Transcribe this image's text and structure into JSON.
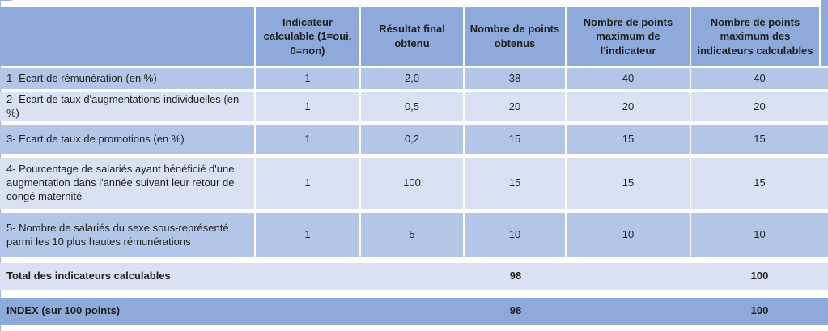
{
  "table": {
    "columns": [
      "",
      "Indicateur calculable (1=oui, 0=non)",
      "Résultat final obtenu",
      "Nombre de points obtenus",
      "Nombre de points maximum de l'indicateur",
      "Nombre de points maximum des indicateurs calculables"
    ],
    "rows": [
      {
        "label": "1- Ecart de rémunération (en %)",
        "calculable": "1",
        "resultat": "2,0",
        "points": "38",
        "max_indicateur": "40",
        "max_calculables": "40"
      },
      {
        "label": "2- Ecart de taux d'augmentations individuelles (en %)",
        "calculable": "1",
        "resultat": "0,5",
        "points": "20",
        "max_indicateur": "20",
        "max_calculables": "20"
      },
      {
        "label": "3- Ecart de taux de promotions (en %)",
        "calculable": "1",
        "resultat": "0,2",
        "points": "15",
        "max_indicateur": "15",
        "max_calculables": "15"
      },
      {
        "label": "4- Pourcentage de salariés ayant bénéficié d'une augmentation dans l'année suivant leur retour de congé maternité",
        "calculable": "1",
        "resultat": "100",
        "points": "15",
        "max_indicateur": "15",
        "max_calculables": "15"
      },
      {
        "label": "5- Nombre de salariés du sexe sous-représenté parmi les 10 plus hautes rémunérations",
        "calculable": "1",
        "resultat": "5",
        "points": "10",
        "max_indicateur": "10",
        "max_calculables": "10"
      }
    ],
    "total_row": {
      "label": "Total des indicateurs calculables",
      "points": "98",
      "max_calculables": "100"
    },
    "index_row": {
      "label": "INDEX (sur 100 points)",
      "points": "98",
      "max_calculables": "100"
    }
  },
  "colors": {
    "header": "#8EAADB",
    "row_medium": "#B4C6E7",
    "row_light": "#D9E2F3",
    "text": "#1F1F1F"
  }
}
